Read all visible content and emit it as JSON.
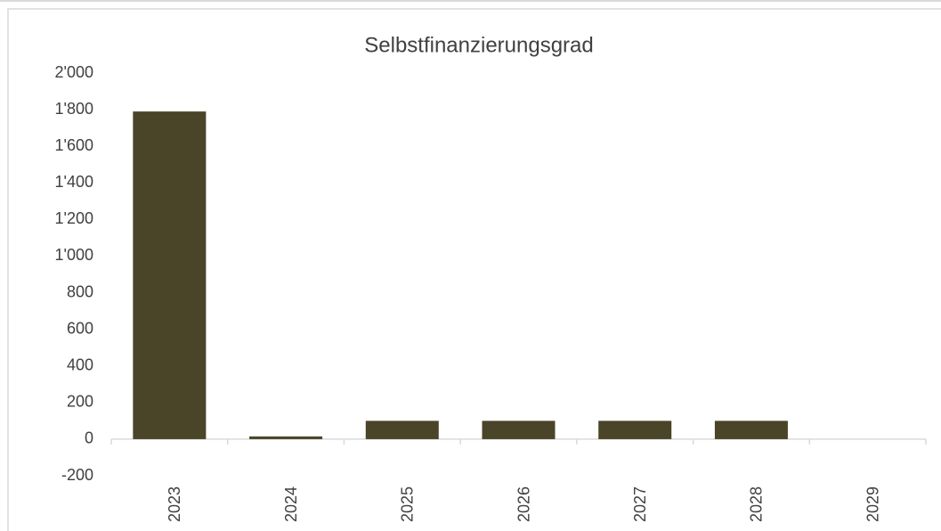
{
  "chart_data": {
    "type": "bar",
    "title": "Selbstfinanzierungsgrad",
    "categories": [
      "2023",
      "2024",
      "2025",
      "2026",
      "2027",
      "2028",
      "2029"
    ],
    "values": [
      1790,
      15,
      100,
      100,
      100,
      100,
      0
    ],
    "color": "#4a4428",
    "ylim": [
      -200,
      2000
    ],
    "yticks": [
      -200,
      0,
      200,
      400,
      600,
      800,
      {
        "value": 1000,
        "label": "1'000"
      },
      {
        "value": 1200,
        "label": "1'200"
      },
      {
        "value": 1400,
        "label": "1'400"
      },
      {
        "value": 1600,
        "label": "1'600"
      },
      {
        "value": 1800,
        "label": "1'800"
      },
      {
        "value": 2000,
        "label": "2'000"
      }
    ],
    "grid": false
  }
}
